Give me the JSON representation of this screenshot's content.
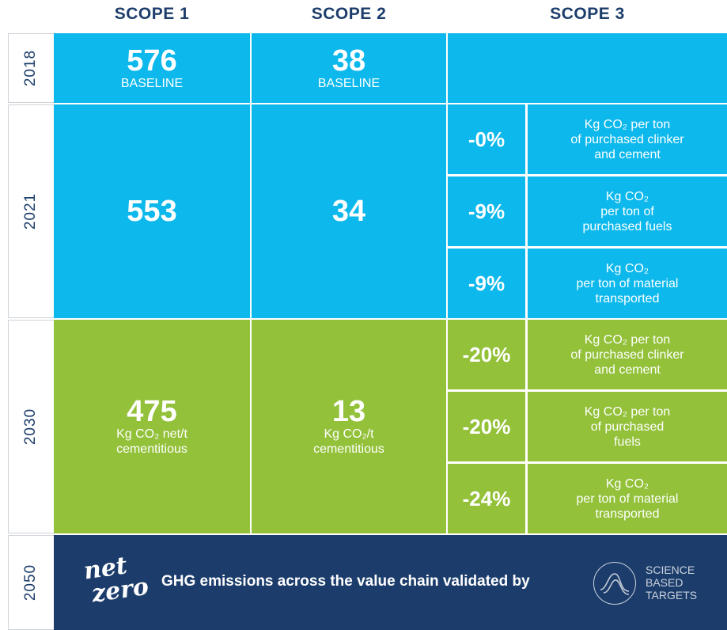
{
  "headers": [
    "SCOPE 1",
    "SCOPE 2",
    "SCOPE 3"
  ],
  "rows": [
    {
      "year": "2018",
      "scope1": {
        "value": "576",
        "label": [
          "BASELINE"
        ]
      },
      "scope2": {
        "value": "38",
        "label": [
          "BASELINE"
        ]
      }
    },
    {
      "year": "2021",
      "scope1": {
        "value": "553"
      },
      "scope2": {
        "value": "34"
      },
      "scope3": [
        {
          "change": "-0%",
          "label": [
            "Kg CO₂ per ton",
            "of purchased clinker",
            "and cement"
          ]
        },
        {
          "change": "-9%",
          "label": [
            "Kg CO₂",
            "per ton of",
            "purchased fuels"
          ]
        },
        {
          "change": "-9%",
          "label": [
            "Kg CO₂",
            "per ton of material",
            "transported"
          ]
        }
      ]
    },
    {
      "year": "2030",
      "scope1": {
        "value": "475",
        "label": [
          "Kg CO₂ net/t",
          "cementitious"
        ]
      },
      "scope2": {
        "value": "13",
        "label": [
          "Kg CO₂/t",
          "cementitious"
        ]
      },
      "scope3": [
        {
          "change": "-20%",
          "label": [
            "Kg CO₂ per ton",
            "of purchased clinker",
            "and cement"
          ]
        },
        {
          "change": "-20%",
          "label": [
            "Kg CO₂ per ton",
            "of purchased",
            "fuels"
          ]
        },
        {
          "change": "-24%",
          "label": [
            "Kg CO₂",
            "per ton of material",
            "transported"
          ]
        }
      ]
    }
  ],
  "footer": {
    "year": "2050",
    "logo": [
      "net",
      "zero"
    ],
    "text": "GHG emissions across the value chain validated by",
    "sbt": [
      "SCIENCE",
      "BASED",
      "TARGETS"
    ]
  }
}
